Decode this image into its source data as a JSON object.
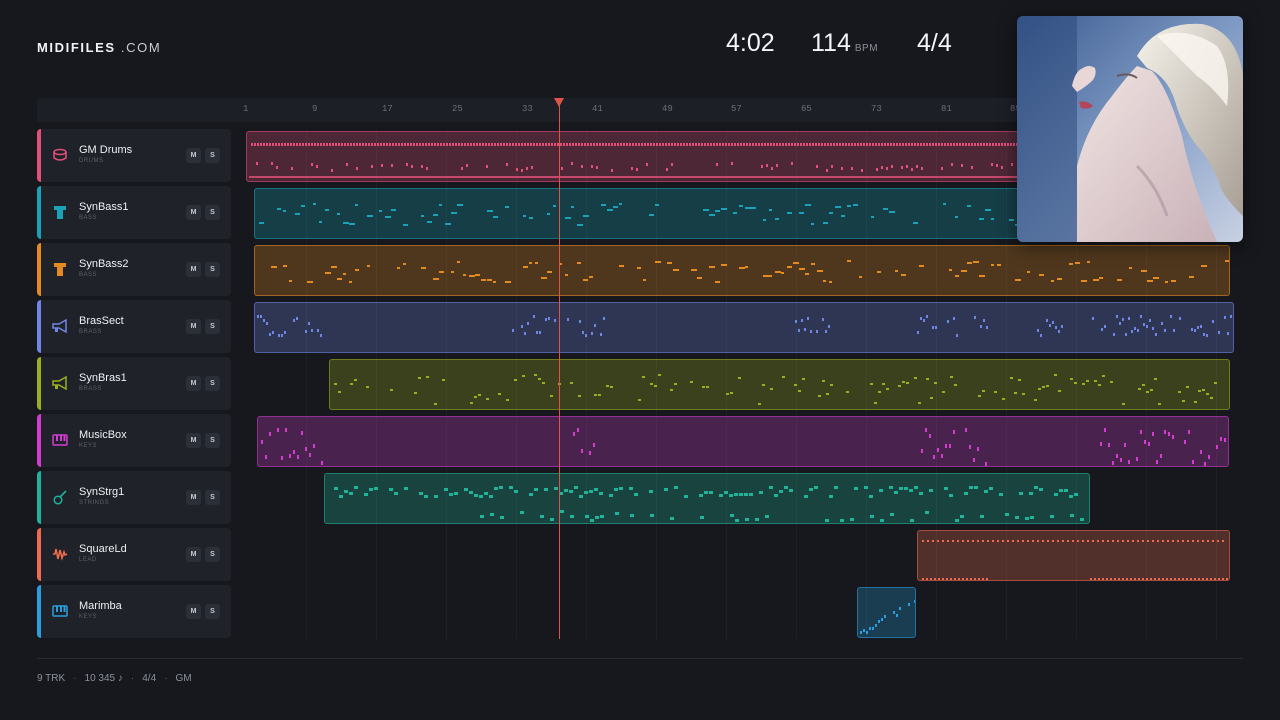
{
  "header": {
    "logo_bold": "MIDIFILES",
    "logo_light": ".COM",
    "time": "4:02",
    "bpm": "114",
    "bpm_unit": "BPM",
    "time_signature": "4/4"
  },
  "ruler": {
    "ticks": [
      "1",
      "9",
      "17",
      "25",
      "33",
      "41",
      "49",
      "57",
      "65",
      "73",
      "81",
      "89"
    ]
  },
  "tracks": [
    {
      "name": "GM Drums",
      "category": "DRUMS",
      "color": "#e2507a",
      "icon": "drum-icon",
      "mute": "M",
      "solo": "S"
    },
    {
      "name": "SynBass1",
      "category": "BASS",
      "color": "#1aa3b8",
      "icon": "bass-icon",
      "mute": "M",
      "solo": "S"
    },
    {
      "name": "SynBass2",
      "category": "BASS",
      "color": "#e58a1f",
      "icon": "bass-icon",
      "mute": "M",
      "solo": "S"
    },
    {
      "name": "BrasSect",
      "category": "BRASS",
      "color": "#6f86e6",
      "icon": "trumpet-icon",
      "mute": "M",
      "solo": "S"
    },
    {
      "name": "SynBras1",
      "category": "BRASS",
      "color": "#9aae1e",
      "icon": "trumpet-icon",
      "mute": "M",
      "solo": "S"
    },
    {
      "name": "MusicBox",
      "category": "KEYS",
      "color": "#d23ccf",
      "icon": "keyboard-icon",
      "mute": "M",
      "solo": "S"
    },
    {
      "name": "SynStrg1",
      "category": "STRINGS",
      "color": "#1fb39a",
      "icon": "guitar-icon",
      "mute": "M",
      "solo": "S"
    },
    {
      "name": "SquareLd",
      "category": "LEAD",
      "color": "#ee6a50",
      "icon": "waveform-icon",
      "mute": "M",
      "solo": "S"
    },
    {
      "name": "Marimba",
      "category": "KEYS",
      "color": "#2a9ee0",
      "icon": "keyboard-icon",
      "mute": "M",
      "solo": "S"
    }
  ],
  "footer": {
    "tracks": "9 TRK",
    "notes": "10 345 ♪",
    "signature": "4/4",
    "standard": "GM"
  }
}
